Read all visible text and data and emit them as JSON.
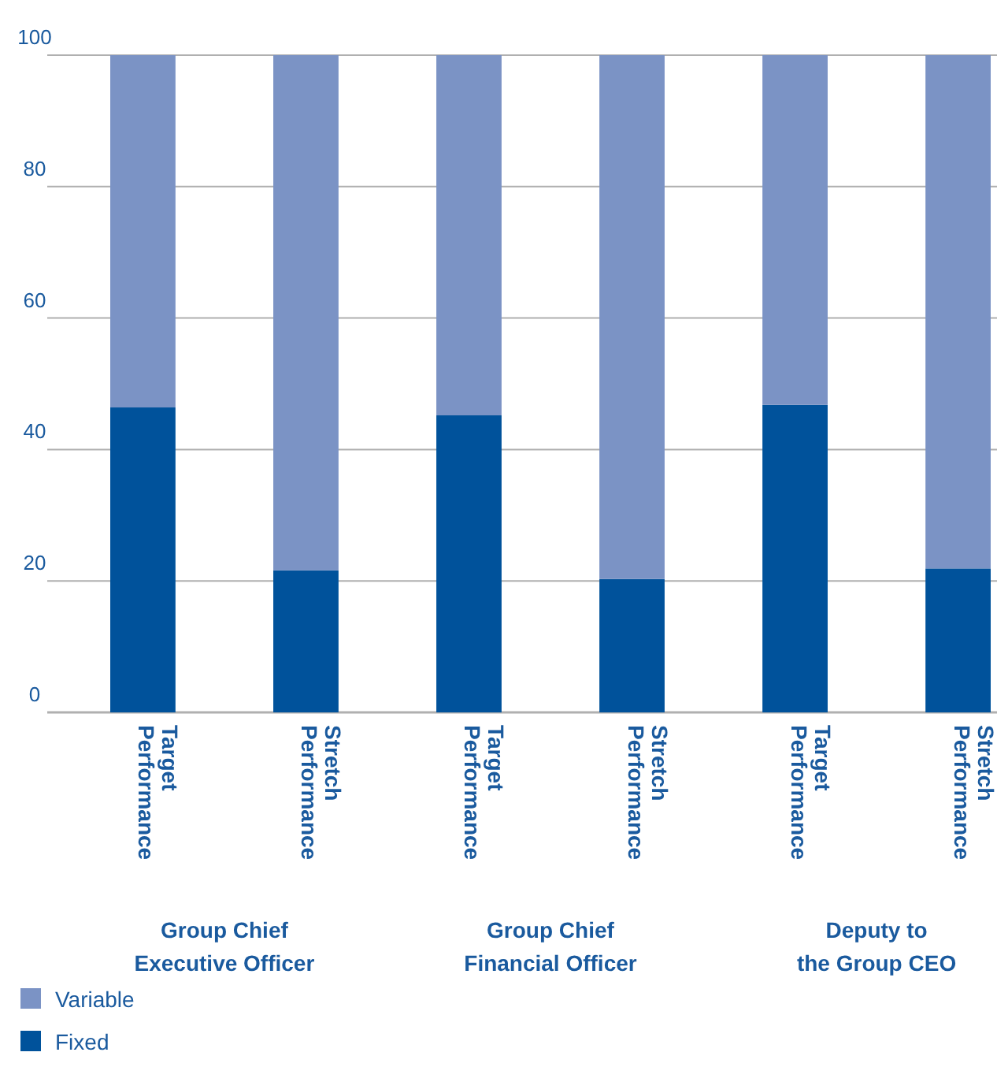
{
  "chart_data": {
    "type": "bar",
    "stacked": true,
    "categories": [
      "Target\nPerformance",
      "Stretch\nPerformance",
      "Target\nPerformance",
      "Stretch\nPerformance",
      "Target\nPerformance",
      "Stretch\nPerformance"
    ],
    "series": [
      {
        "name": "Fixed",
        "color": "#00529b",
        "values": [
          46.4,
          21.6,
          45.2,
          20.3,
          46.8,
          21.9
        ]
      },
      {
        "name": "Variable",
        "color": "#7b93c5",
        "values": [
          53.6,
          78.4,
          54.8,
          79.7,
          53.2,
          78.1
        ]
      }
    ],
    "ylim": [
      0,
      100
    ],
    "yticks": [
      0,
      20,
      40,
      60,
      80,
      100
    ],
    "grid": "y",
    "legend": "bottom left",
    "annotations": [
      "Group Chief\nExecutive Officer",
      "Group Chief\nFinancial Officer",
      "Deputy to\nthe Group CEO"
    ]
  }
}
